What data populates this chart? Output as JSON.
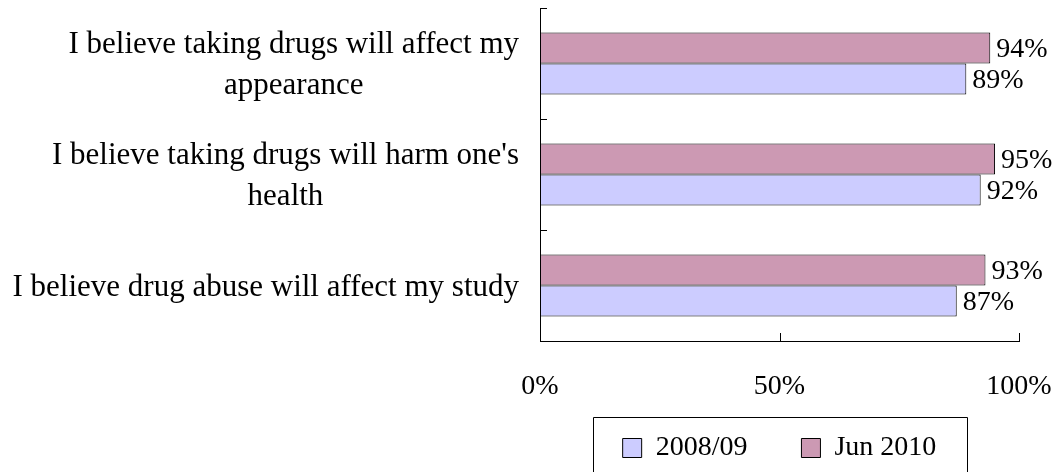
{
  "chart_data": {
    "type": "bar",
    "orientation": "horizontal",
    "categories": [
      "I believe taking drugs will affect my appearance",
      "I believe taking drugs will harm one's health",
      "I believe drug abuse will affect my study"
    ],
    "series": [
      {
        "name": "2008/09",
        "color": "#ccccff",
        "values": [
          89,
          92,
          87
        ],
        "value_labels": [
          "89%",
          "92%",
          "87%"
        ]
      },
      {
        "name": "Jun 2010",
        "color": "#cc99b3",
        "values": [
          94,
          95,
          93
        ],
        "value_labels": [
          "94%",
          "95%",
          "93%"
        ]
      }
    ],
    "xlim": [
      0,
      100
    ],
    "xticks": [
      {
        "value": 0,
        "label": "0%"
      },
      {
        "value": 50,
        "label": "50%"
      },
      {
        "value": 100,
        "label": "100%"
      }
    ],
    "legend": "bottom"
  }
}
